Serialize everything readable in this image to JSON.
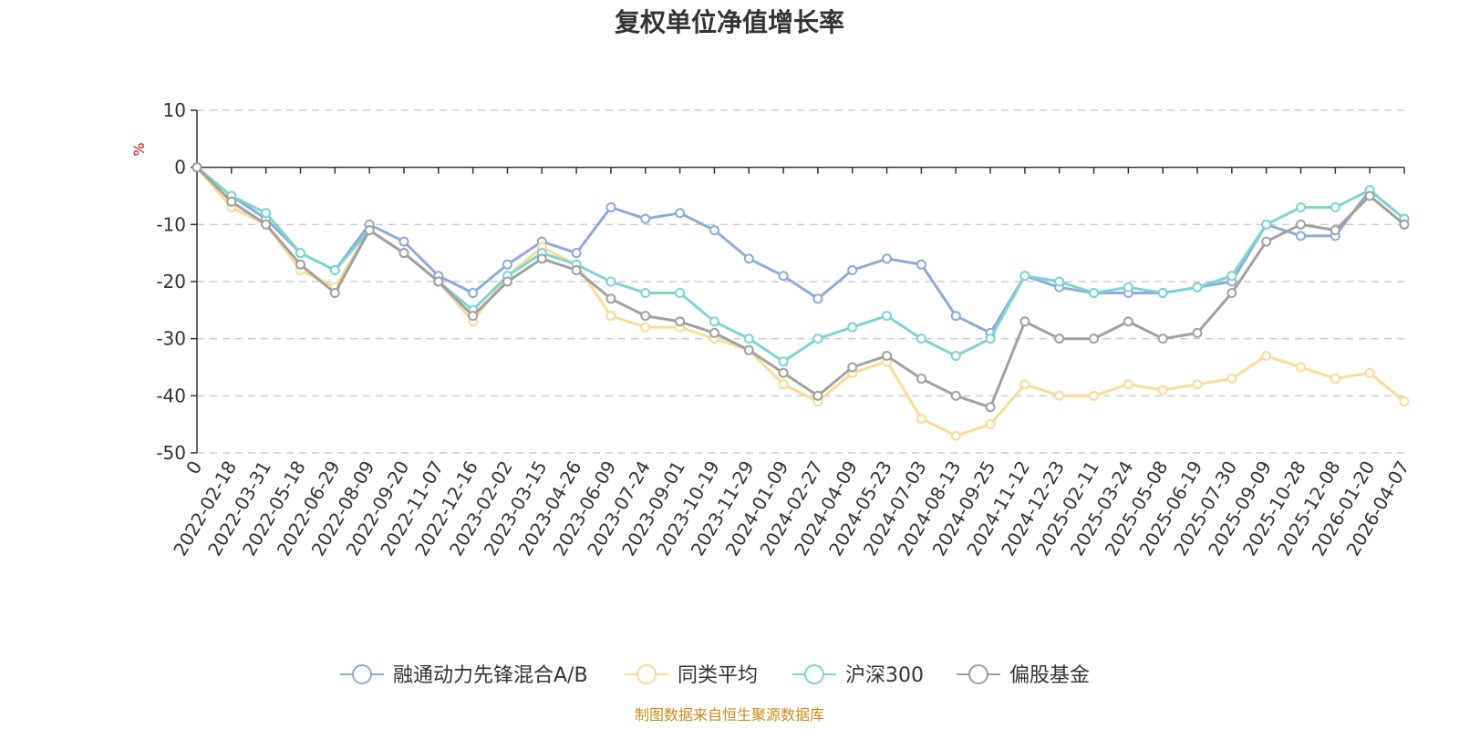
{
  "chart_data": {
    "type": "line",
    "title": "复权单位净值增长率",
    "ylabel": "%",
    "ylim": [
      -50,
      10
    ],
    "yticks": [
      10,
      0,
      -10,
      -20,
      -30,
      -40,
      -50
    ],
    "grid": true,
    "legend_position": "bottom",
    "x_tick_labels": [
      "0",
      "2022-02-18",
      "2022-03-31",
      "2022-05-18",
      "2022-06-29",
      "2022-08-09",
      "2022-09-20",
      "2022-11-07",
      "2022-12-16",
      "2023-02-02",
      "2023-03-15",
      "2023-04-26",
      "2023-06-09",
      "2023-07-24",
      "2023-09-01",
      "2023-10-19",
      "2023-11-29",
      "2024-01-09",
      "2024-02-27",
      "2024-04-09",
      "2024-05-23",
      "2024-07-03",
      "2024-08-13",
      "2024-09-25",
      "2024-11-12",
      "2024-12-23",
      "2025-02-11",
      "2025-03-24",
      "2025-05-08",
      "2025-06-19",
      "2025-07-30",
      "2025-09-09",
      "2025-10-28",
      "2025-12-08",
      "2026-01-20",
      "2026-04-07"
    ],
    "x": [
      0,
      1,
      2,
      3,
      4,
      5,
      6,
      7,
      8,
      9,
      10,
      11,
      12,
      13,
      14,
      15,
      16,
      17,
      18,
      19,
      20,
      21,
      22,
      23,
      24,
      25,
      26,
      27,
      28,
      29,
      30,
      31,
      32,
      33,
      34,
      35
    ],
    "series": [
      {
        "name": "融通动力先锋混合A/B",
        "color": "#8caadb",
        "values": [
          0,
          -5,
          -9,
          -15,
          -18,
          -10,
          -13,
          -19,
          -22,
          -17,
          -13,
          -15,
          -7,
          -9,
          -8,
          -11,
          -16,
          -19,
          -23,
          -18,
          -16,
          -17,
          -26,
          -29,
          -19,
          -21,
          -22,
          -22,
          -22,
          -21,
          -20,
          -10,
          -12,
          -12,
          -4,
          -9
        ]
      },
      {
        "name": "同类平均",
        "color": "#fcd994",
        "values": [
          0,
          -7,
          -10,
          -18,
          -21,
          -11,
          -15,
          -20,
          -27,
          -19,
          -14,
          -17,
          -26,
          -28,
          -28,
          -30,
          -32,
          -38,
          -41,
          -36,
          -34,
          -44,
          -47,
          -45,
          -38,
          -40,
          -40,
          -38,
          -39,
          -38,
          -37,
          -33,
          -35,
          -37,
          -36,
          -41
        ]
      },
      {
        "name": "沪深300",
        "color": "#7dd3d3",
        "values": [
          0,
          -5,
          -8,
          -15,
          -18,
          -11,
          -15,
          -20,
          -25,
          -19,
          -15,
          -17,
          -20,
          -22,
          -22,
          -27,
          -30,
          -34,
          -30,
          -28,
          -26,
          -30,
          -33,
          -30,
          -19,
          -20,
          -22,
          -21,
          -22,
          -21,
          -19,
          -10,
          -7,
          -7,
          -4,
          -9
        ]
      },
      {
        "name": "偏股基金",
        "color": "#a0a0a0",
        "values": [
          0,
          -6,
          -10,
          -17,
          -22,
          -11,
          -15,
          -20,
          -26,
          -20,
          -16,
          -18,
          -23,
          -26,
          -27,
          -29,
          -32,
          -36,
          -40,
          -35,
          -33,
          -37,
          -40,
          -42,
          -27,
          -30,
          -30,
          -27,
          -30,
          -29,
          -22,
          -13,
          -10,
          -11,
          -5,
          -10
        ]
      }
    ],
    "source_note": "制图数据来自恒生聚源数据库"
  }
}
